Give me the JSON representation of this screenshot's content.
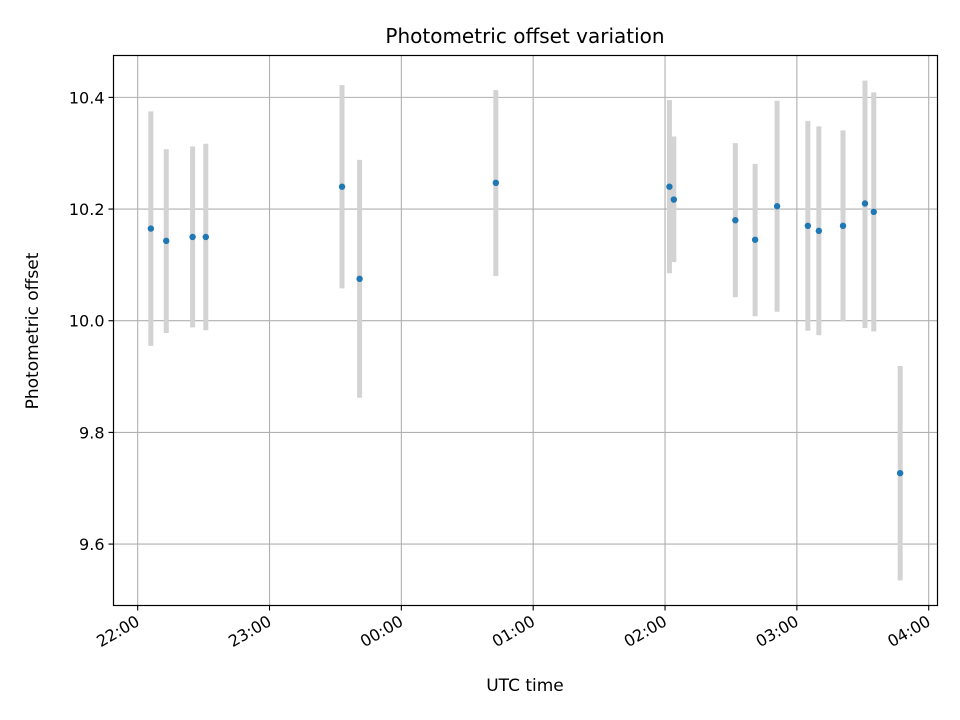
{
  "chart_data": {
    "type": "scatter",
    "title": "Photometric offset variation",
    "xlabel": "UTC time",
    "ylabel": "Photometric offset",
    "grid": true,
    "xlim": [
      "21:49",
      "04:04"
    ],
    "ylim": [
      9.49,
      10.475
    ],
    "x_ticks": [
      "22:00",
      "23:00",
      "00:00",
      "01:00",
      "02:00",
      "03:00",
      "04:00"
    ],
    "y_ticks": [
      "9.6",
      "9.8",
      "10.0",
      "10.2",
      "10.4"
    ],
    "marker_color": "#1f77b4",
    "errorbar_color": "#d3d3d3",
    "points": [
      {
        "time": "22:06",
        "offset": 10.165,
        "low": 9.955,
        "high": 10.375
      },
      {
        "time": "22:13",
        "offset": 10.143,
        "low": 9.978,
        "high": 10.307
      },
      {
        "time": "22:25",
        "offset": 10.15,
        "low": 9.988,
        "high": 10.312
      },
      {
        "time": "22:31",
        "offset": 10.15,
        "low": 9.983,
        "high": 10.317
      },
      {
        "time": "23:33",
        "offset": 10.24,
        "low": 10.058,
        "high": 10.422
      },
      {
        "time": "23:41",
        "offset": 10.075,
        "low": 9.862,
        "high": 10.288
      },
      {
        "time": "00:43",
        "offset": 10.247,
        "low": 10.08,
        "high": 10.413
      },
      {
        "time": "02:02",
        "offset": 10.24,
        "low": 10.085,
        "high": 10.395
      },
      {
        "time": "02:04",
        "offset": 10.217,
        "low": 10.105,
        "high": 10.33
      },
      {
        "time": "02:32",
        "offset": 10.18,
        "low": 10.042,
        "high": 10.318
      },
      {
        "time": "02:41",
        "offset": 10.145,
        "low": 10.008,
        "high": 10.281
      },
      {
        "time": "02:51",
        "offset": 10.205,
        "low": 10.016,
        "high": 10.394
      },
      {
        "time": "03:05",
        "offset": 10.17,
        "low": 9.982,
        "high": 10.358
      },
      {
        "time": "03:10",
        "offset": 10.161,
        "low": 9.974,
        "high": 10.348
      },
      {
        "time": "03:21",
        "offset": 10.17,
        "low": 9.999,
        "high": 10.341
      },
      {
        "time": "03:31",
        "offset": 10.21,
        "low": 9.987,
        "high": 10.43
      },
      {
        "time": "03:35",
        "offset": 10.195,
        "low": 9.981,
        "high": 10.409
      },
      {
        "time": "03:47",
        "offset": 9.727,
        "low": 9.535,
        "high": 9.919
      }
    ]
  }
}
